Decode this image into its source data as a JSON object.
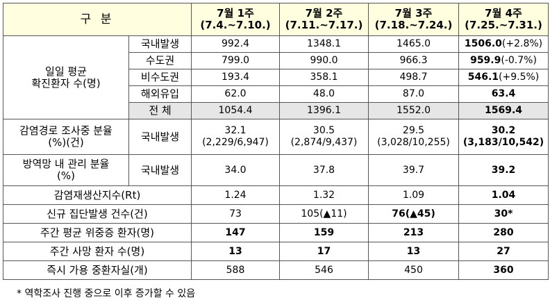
{
  "header": {
    "label": "구 분",
    "columns": [
      {
        "week": "7월 1주",
        "range": "(7.4.~7.10.)"
      },
      {
        "week": "7월 2주",
        "range": "(7.11.~7.17.)"
      },
      {
        "week": "7월 3주",
        "range": "(7.18.~7.24.)"
      },
      {
        "week": "7월 4주",
        "range": "(7.25.~7.31.)"
      }
    ]
  },
  "groups": [
    {
      "label": [
        "일일 평균",
        "확진환자 수(명)"
      ],
      "rows": [
        {
          "sublabel": "국내발생",
          "cells": [
            {
              "text": "992.4"
            },
            {
              "text": "1348.1"
            },
            {
              "text": "1465.0"
            },
            {
              "text": "1506.0",
              "note": "(+2.8%)",
              "bold": true
            }
          ]
        },
        {
          "sublabel": "수도권",
          "cells": [
            {
              "text": "799.0"
            },
            {
              "text": "990.0"
            },
            {
              "text": "966.3"
            },
            {
              "text": "959.9",
              "note": "(-0.7%)",
              "bold": true
            }
          ]
        },
        {
          "sublabel": "비수도권",
          "cells": [
            {
              "text": "193.4"
            },
            {
              "text": "358.1"
            },
            {
              "text": "498.7"
            },
            {
              "text": "546.1",
              "note": "(+9.5%)",
              "bold": true
            }
          ]
        },
        {
          "sublabel": "해외유입",
          "cells": [
            {
              "text": "62.0"
            },
            {
              "text": "48.0"
            },
            {
              "text": "87.0"
            },
            {
              "text": "63.4",
              "bold": true
            }
          ]
        },
        {
          "sublabel": "전 체",
          "shaded": true,
          "cells": [
            {
              "text": "1054.4"
            },
            {
              "text": "1396.1"
            },
            {
              "text": "1552.0"
            },
            {
              "text": "1569.4",
              "bold": true
            }
          ]
        }
      ]
    },
    {
      "label": [
        "감염경로 조사중 분율",
        "(%)(건)"
      ],
      "rows": [
        {
          "sublabel": "국내발생",
          "cells": [
            {
              "text": "32.1",
              "sub": "(2,229/6,947)"
            },
            {
              "text": "30.5",
              "sub": "(2,874/9,437)"
            },
            {
              "text": "29.5",
              "sub": "(3,028/10,255)"
            },
            {
              "text": "30.2",
              "sub": "(3,183/10,542)",
              "bold": true
            }
          ]
        }
      ]
    },
    {
      "label": [
        "방역망 내 관리 분율",
        "(%)"
      ],
      "rows": [
        {
          "sublabel": "국내발생",
          "cells": [
            {
              "text": "34.0"
            },
            {
              "text": "37.8"
            },
            {
              "text": "39.7"
            },
            {
              "text": "39.2",
              "bold": true
            }
          ]
        }
      ]
    },
    {
      "label": [
        "감염재생산지수(Rt)"
      ],
      "rows": [
        {
          "cells": [
            {
              "text": "1.24"
            },
            {
              "text": "1.32"
            },
            {
              "text": "1.09"
            },
            {
              "text": "1.04",
              "bold": true
            }
          ]
        }
      ]
    },
    {
      "label": [
        "신규 집단발생 건수(건)"
      ],
      "rows": [
        {
          "cells": [
            {
              "text": "73"
            },
            {
              "text": "105(▲11)"
            },
            {
              "text": "76(▲45)",
              "bold": true
            },
            {
              "text": "30*",
              "bold": true
            }
          ]
        }
      ]
    },
    {
      "label": [
        "주간 평균 위중증 환자(명)"
      ],
      "rows": [
        {
          "cells": [
            {
              "text": "147",
              "bold": true
            },
            {
              "text": "159",
              "bold": true
            },
            {
              "text": "213",
              "bold": true
            },
            {
              "text": "280",
              "bold": true
            }
          ]
        }
      ]
    },
    {
      "label": [
        "주간 사망 환자 수(명)"
      ],
      "rows": [
        {
          "cells": [
            {
              "text": "13",
              "bold": true
            },
            {
              "text": "17",
              "bold": true
            },
            {
              "text": "13",
              "bold": true
            },
            {
              "text": "27",
              "bold": true
            }
          ]
        }
      ]
    },
    {
      "label": [
        "즉시 가용 중환자실(개)"
      ],
      "rows": [
        {
          "cells": [
            {
              "text": "588"
            },
            {
              "text": "546"
            },
            {
              "text": "450"
            },
            {
              "text": "360",
              "bold": true
            }
          ]
        }
      ]
    }
  ],
  "footnote": "* 역학조사 진행 중으로 이후 증가할 수 있음"
}
